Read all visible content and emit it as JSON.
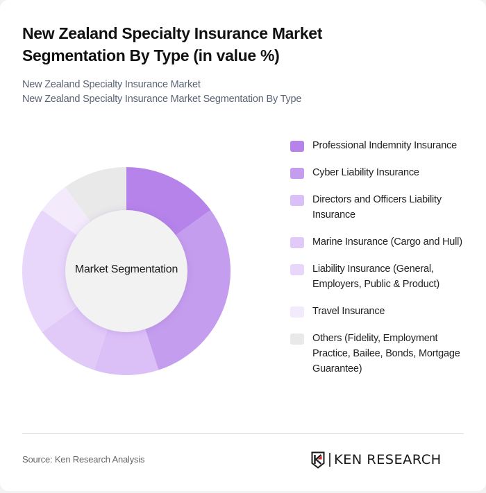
{
  "header": {
    "title": "New Zealand Specialty Insurance Market Segmentation By Type (in value %)",
    "subtitle_line1": "New Zealand Specialty Insurance Market",
    "subtitle_line2": "New Zealand Specialty Insurance Market Segmentation By Type"
  },
  "chart": {
    "center_label": "Market Segmentation",
    "inner_color": "#f2f2f2"
  },
  "legend": [
    {
      "label": "Professional Indemnity Insurance",
      "color": "#b583ea"
    },
    {
      "label": "Cyber Liability Insurance",
      "color": "#c59dee"
    },
    {
      "label": "Directors and Officers Liability Insurance",
      "color": "#dbbff7"
    },
    {
      "label": "Marine Insurance (Cargo and Hull)",
      "color": "#e1c9f8"
    },
    {
      "label": "Liability Insurance (General, Employers, Public & Product)",
      "color": "#e8d7fa"
    },
    {
      "label": "Travel Insurance",
      "color": "#f3ebfc"
    },
    {
      "label": "Others (Fidelity, Employment Practice, Bailee, Bonds, Mortgage Guarantee)",
      "color": "#e9e9e9"
    }
  ],
  "footer": {
    "source": "Source: Ken Research Analysis",
    "logo_text": "KEN RESEARCH",
    "logo_accent": "#d2232a"
  },
  "chart_data": {
    "type": "pie",
    "title": "New Zealand Specialty Insurance Market Segmentation By Type (in value %)",
    "subtitle": "New Zealand Specialty Insurance Market Segmentation By Type",
    "center_label": "Market Segmentation",
    "donut": true,
    "legend_position": "right",
    "categories": [
      "Professional Indemnity Insurance",
      "Cyber Liability Insurance",
      "Directors and Officers Liability Insurance",
      "Marine Insurance (Cargo and Hull)",
      "Liability Insurance (General, Employers, Public & Product)",
      "Travel Insurance",
      "Others (Fidelity, Employment Practice, Bailee, Bonds, Mortgage Guarantee)"
    ],
    "values": [
      15,
      30,
      10,
      10,
      20,
      5,
      10
    ],
    "colors": [
      "#b583ea",
      "#c59dee",
      "#dbbff7",
      "#e1c9f8",
      "#e8d7fa",
      "#f3ebfc",
      "#e9e9e9"
    ],
    "unit": "%"
  }
}
